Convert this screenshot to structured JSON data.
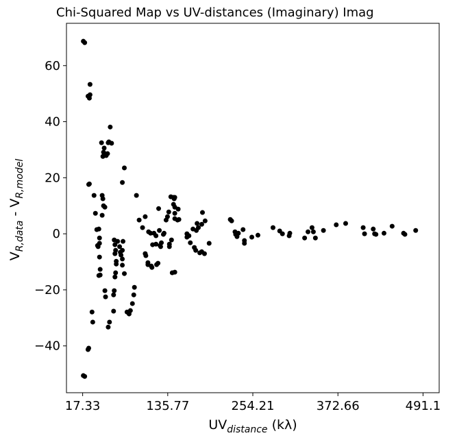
{
  "chart_data": {
    "type": "scatter",
    "title": "Chi-Squared Map vs UV-distances (Imaginary) Imag",
    "xlabel": [
      "UV",
      "distance",
      " (kλ)"
    ],
    "ylabel": [
      "V",
      "R,data",
      " - V",
      "R,model"
    ],
    "color": "#000000",
    "xlim": [
      -5.2,
      513.6
    ],
    "ylim": [
      -56.7,
      75.1
    ],
    "xticks": [
      17.33,
      135.77,
      254.21,
      372.66,
      491.1
    ],
    "yticks": [
      {
        "value": -40,
        "label": "−40"
      },
      {
        "value": -20,
        "label": "−20"
      },
      0,
      20,
      40,
      60
    ],
    "x": [
      18.3,
      20.2,
      18.3,
      20.2,
      24.8,
      25.8,
      24.8,
      26.7,
      27.6,
      27.6,
      25.8,
      26.7,
      30.4,
      31.4,
      33.2,
      35.1,
      37,
      38.9,
      38,
      39.9,
      40.8,
      40.8,
      40.8,
      41.7,
      41.7,
      39.9,
      44.5,
      45.5,
      44.5,
      43.6,
      45.5,
      46.4,
      47.3,
      46.4,
      48.3,
      48.3,
      49.2,
      50.1,
      52,
      52.9,
      53.8,
      57.6,
      55.7,
      52.9,
      54.7,
      60.4,
      60.4,
      61.3,
      61.3,
      62.3,
      63.2,
      62.3,
      64.1,
      63.2,
      62.3,
      64.1,
      66,
      68.8,
      69.8,
      70.7,
      72.6,
      72.6,
      72.6,
      73.5,
      75.4,
      72.6,
      75.4,
      79.1,
      82,
      83.8,
      86.6,
      88.5,
      89.4,
      92.2,
      96,
      100.7,
      104.4,
      104.4,
      105.3,
      108.2,
      108.2,
      109.1,
      111.9,
      112.8,
      113.8,
      116.6,
      114.7,
      119.4,
      119.4,
      120.3,
      122.2,
      123.1,
      124.1,
      125,
      125.9,
      126.9,
      129.7,
      130.7,
      133.5,
      135.4,
      137.2,
      138.1,
      138.1,
      141,
      140.1,
      143.8,
      145.6,
      144.7,
      143.8,
      145.6,
      145.6,
      150.3,
      145.6,
      149.4,
      151.3,
      142,
      145.6,
      162.5,
      162.5,
      165.3,
      167.2,
      170.9,
      172.8,
      174.7,
      175.6,
      176.6,
      178.4,
      180.3,
      183.1,
      183.1,
      184.1,
      186.9,
      187.8,
      193.4,
      222.8,
      224.7,
      229.4,
      230.3,
      232.2,
      234.1,
      240.6,
      242.5,
      242.5,
      252.8,
      261.3,
      282.3,
      291.6,
      295.4,
      304.8,
      305.7,
      326.3,
      331,
      336.6,
      338.5,
      341.3,
      352.5,
      370.3,
      383.4,
      407.8,
      409.7,
      421.8,
      423.7,
      425.6,
      436.8,
      448.1,
      464,
      465.9,
      480.9
    ],
    "y": [
      68.7,
      68.2,
      -50.6,
      -50.9,
      -41.3,
      -40.8,
      49.1,
      48.4,
      49.6,
      53.3,
      17.6,
      17.8,
      -27.9,
      -31.5,
      13.7,
      7.3,
      1.5,
      -4.6,
      -4.2,
      1.7,
      -1.5,
      -3.4,
      -8.3,
      -12.7,
      -14.7,
      -14.9,
      13.7,
      12.5,
      6.6,
      32.5,
      27.6,
      29.1,
      30.6,
      10.0,
      9.5,
      -20.3,
      -22.5,
      27.9,
      28.6,
      32.5,
      32.8,
      32.3,
      38.1,
      -33.3,
      -31.5,
      -27.6,
      -21.8,
      -20.3,
      -2.2,
      -3.9,
      -5.9,
      -7.1,
      -10.8,
      -13.9,
      -15.4,
      -9.8,
      -2.7,
      -4.6,
      -6.6,
      -7.6,
      -9,
      -11.2,
      -5.9,
      -2.7,
      -14.2,
      18.3,
      23.5,
      -27.9,
      -28.6,
      -27.4,
      -24.9,
      -21.8,
      -19.1,
      13.7,
      4.9,
      2.2,
      6.1,
      -7.1,
      -7.8,
      -10.3,
      -11.0,
      0.7,
      0.2,
      -11.5,
      -12.0,
      0.2,
      -3.9,
      -0.7,
      -3.7,
      -11.0,
      -10.5,
      9.0,
      1.2,
      -4.2,
      -4.6,
      -3.2,
      -0.2,
      0.2,
      4.9,
      6.1,
      7.8,
      -3.7,
      -4.6,
      -2.2,
      13.2,
      13.0,
      13.0,
      12.5,
      10.5,
      9.5,
      7.3,
      8.8,
      5.4,
      4.9,
      5.1,
      -13.9,
      -13.7,
      0,
      -1.2,
      -0.7,
      -3.2,
      1.7,
      -4.9,
      -5.9,
      1.2,
      3.7,
      2.2,
      -6.8,
      -6.4,
      3.4,
      7.6,
      -7.1,
      4.6,
      -3.4,
      5.1,
      4.6,
      0.7,
      -0.2,
      -1.0,
      0.2,
      1.5,
      -2.4,
      -3.4,
      -1.2,
      -0.5,
      2.2,
      1.0,
      0,
      -0.7,
      0.2,
      -1.5,
      0.7,
      2.2,
      0.7,
      -1.5,
      1.2,
      3.2,
      3.7,
      2.2,
      0,
      1.7,
      0,
      -0.2,
      0.2,
      2.7,
      0.2,
      -0.2,
      1.2
    ]
  }
}
